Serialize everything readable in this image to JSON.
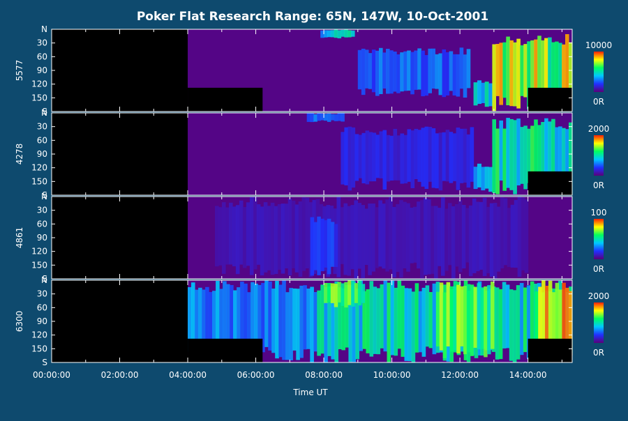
{
  "title": "Poker Flat Research Range: 65N, 147W, 10-Oct-2001",
  "colors": {
    "background": "#0e4a6e",
    "axes": "#ffffff",
    "data_gap": "#000000"
  },
  "chart_data": {
    "type": "heatmap",
    "xlabel": "Time UT",
    "x_ticks": [
      "00:00:00",
      "02:00:00",
      "04:00:00",
      "06:00:00",
      "08:00:00",
      "10:00:00",
      "12:00:00",
      "14:00:00"
    ],
    "xlim_hours": [
      0,
      15.3
    ],
    "y_ticks": [
      "N",
      "30",
      "60",
      "90",
      "120",
      "150",
      "S"
    ],
    "ylim_deg": [
      0,
      180
    ],
    "colorscale": [
      "#5a0078",
      "#2030ff",
      "#00c8ff",
      "#00ff60",
      "#ffff00",
      "#ff2000"
    ],
    "panels": [
      {
        "wavelength": "5577",
        "scale_max": "10000",
        "scale_min": "0R",
        "start_hours": 4.0,
        "end_hours": 15.3,
        "blocked_regions": [
          {
            "from": 4.0,
            "to": 6.2,
            "fromDeg": 128,
            "toDeg": 180
          },
          {
            "from": 14.0,
            "to": 15.3,
            "fromDeg": 128,
            "toDeg": 180
          }
        ],
        "bursts": [
          {
            "from": 7.9,
            "to": 8.9,
            "fromDeg": 0,
            "toDeg": 20,
            "level": 0.55
          },
          {
            "from": 9.0,
            "to": 12.3,
            "fromDeg": 40,
            "toDeg": 150,
            "level": 0.35
          },
          {
            "from": 12.4,
            "to": 12.95,
            "fromDeg": 110,
            "toDeg": 170,
            "level": 0.6
          },
          {
            "from": 12.95,
            "to": 15.3,
            "fromDeg": 10,
            "toDeg": 180,
            "level": 0.9
          }
        ]
      },
      {
        "wavelength": "4278",
        "scale_max": "2000",
        "scale_min": "0R",
        "start_hours": 4.0,
        "end_hours": 15.3,
        "blocked_regions": [
          {
            "from": 14.0,
            "to": 15.3,
            "fromDeg": 128,
            "toDeg": 180
          }
        ],
        "bursts": [
          {
            "from": 7.5,
            "to": 8.6,
            "fromDeg": 0,
            "toDeg": 20,
            "level": 0.4
          },
          {
            "from": 8.5,
            "to": 12.4,
            "fromDeg": 30,
            "toDeg": 170,
            "level": 0.2
          },
          {
            "from": 12.4,
            "to": 12.95,
            "fromDeg": 110,
            "toDeg": 175,
            "level": 0.45
          },
          {
            "from": 12.95,
            "to": 15.3,
            "fromDeg": 10,
            "toDeg": 180,
            "level": 0.65
          }
        ]
      },
      {
        "wavelength": "4861",
        "scale_max": "100",
        "scale_min": "0R",
        "start_hours": 4.0,
        "end_hours": 15.3,
        "blocked_regions": [],
        "bursts": [
          {
            "from": 4.8,
            "to": 14.0,
            "fromDeg": 0,
            "toDeg": 180,
            "level": 0.12
          },
          {
            "from": 7.6,
            "to": 8.4,
            "fromDeg": 40,
            "toDeg": 180,
            "level": 0.25
          }
        ]
      },
      {
        "wavelength": "6300",
        "scale_max": "2000",
        "scale_min": "0R",
        "start_hours": 4.0,
        "end_hours": 15.3,
        "blocked_regions": [
          {
            "from": 4.0,
            "to": 6.2,
            "fromDeg": 128,
            "toDeg": 180
          },
          {
            "from": 14.0,
            "to": 15.3,
            "fromDeg": 128,
            "toDeg": 180
          }
        ],
        "bursts": [
          {
            "from": 4.0,
            "to": 7.8,
            "fromDeg": 0,
            "toDeg": 180,
            "level": 0.42
          },
          {
            "from": 7.8,
            "to": 15.3,
            "fromDeg": 0,
            "toDeg": 180,
            "level": 0.62
          },
          {
            "from": 8.0,
            "to": 9.2,
            "fromDeg": 0,
            "toDeg": 60,
            "level": 0.85
          },
          {
            "from": 11.3,
            "to": 13.0,
            "fromDeg": 0,
            "toDeg": 180,
            "level": 0.8
          },
          {
            "from": 14.2,
            "to": 15.3,
            "fromDeg": 0,
            "toDeg": 180,
            "level": 0.97
          }
        ]
      }
    ]
  }
}
